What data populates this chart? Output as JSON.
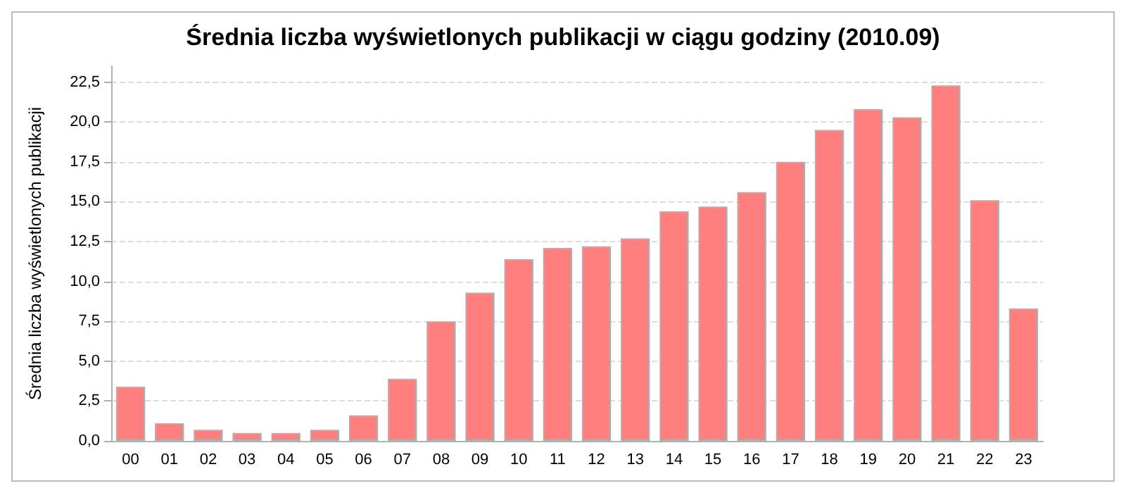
{
  "chart_data": {
    "type": "bar",
    "title": "Średnia liczba wyświetlonych publikacji w ciągu godziny (2010.09)",
    "ylabel": "Średnia liczba wyświetlonych publikacji",
    "categories": [
      "00",
      "01",
      "02",
      "03",
      "04",
      "05",
      "06",
      "07",
      "08",
      "09",
      "10",
      "11",
      "12",
      "13",
      "14",
      "15",
      "16",
      "17",
      "18",
      "19",
      "20",
      "21",
      "22",
      "23"
    ],
    "values": [
      3.4,
      1.1,
      0.7,
      0.5,
      0.5,
      0.7,
      1.6,
      3.9,
      7.5,
      9.3,
      11.4,
      12.1,
      12.2,
      12.7,
      14.4,
      14.7,
      15.6,
      17.5,
      19.5,
      20.8,
      20.3,
      22.3,
      15.1,
      8.3
    ],
    "color": "#ff7f7f",
    "ylim": [
      0,
      23.5
    ],
    "yticks": [
      {
        "value": 0,
        "label": "0,0"
      },
      {
        "value": 2.5,
        "label": "2,5"
      },
      {
        "value": 5,
        "label": "5,0"
      },
      {
        "value": 7.5,
        "label": "7,5"
      },
      {
        "value": 10,
        "label": "10,0"
      },
      {
        "value": 12.5,
        "label": "12,5"
      },
      {
        "value": 15,
        "label": "15,0"
      },
      {
        "value": 17.5,
        "label": "17,5"
      },
      {
        "value": 20,
        "label": "20,0"
      },
      {
        "value": 22.5,
        "label": "22,5"
      }
    ],
    "grid": "y"
  }
}
